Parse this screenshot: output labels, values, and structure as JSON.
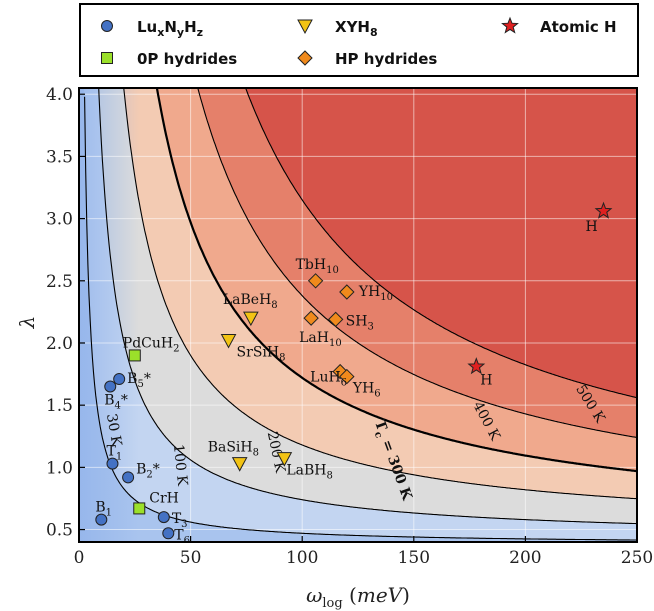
{
  "legend": {
    "items": [
      {
        "label": "LuxNyHz",
        "marker": "circle",
        "color": "#4472C4",
        "series": "LuNH"
      },
      {
        "label": "XYH8",
        "marker": "tri-down",
        "color": "#F2C314",
        "series": "XYH8"
      },
      {
        "label": "Atomic H",
        "marker": "star",
        "color": "#E02020",
        "series": "AtomicH"
      },
      {
        "label": "0P hydrides",
        "marker": "square",
        "color": "#9BE02A",
        "series": "0P"
      },
      {
        "label": "HP hydrides",
        "marker": "diamond",
        "color": "#F08A1C",
        "series": "HP"
      }
    ]
  },
  "chart_data": {
    "type": "scatter",
    "xlabel": "ωlog (meV)",
    "ylabel": "λ",
    "xlim": [
      0,
      250
    ],
    "ylim": [
      0.4,
      4.05
    ],
    "xticks": [
      0,
      50,
      100,
      150,
      200,
      250
    ],
    "yticks": [
      0.5,
      1.0,
      1.5,
      2.0,
      2.5,
      3.0,
      3.5,
      4.0
    ],
    "grid": true,
    "legend_position": "top",
    "contours": [
      {
        "label": "30 K",
        "Tc": 30
      },
      {
        "label": "100 K",
        "Tc": 100
      },
      {
        "label": "200 K",
        "Tc": 200
      },
      {
        "label": "Tc = 300 K",
        "Tc": 300,
        "bold": true
      },
      {
        "label": "400 K",
        "Tc": 400
      },
      {
        "label": "500 K",
        "Tc": 500
      }
    ],
    "series": [
      {
        "name": "LuxNyHz",
        "marker": "circle",
        "color": "#4472C4",
        "points": [
          {
            "x": 14,
            "y": 1.65,
            "label": "B4*"
          },
          {
            "x": 18,
            "y": 1.71,
            "label": "B5*"
          },
          {
            "x": 15,
            "y": 1.03,
            "label": "T1"
          },
          {
            "x": 22,
            "y": 0.92,
            "label": "B2*"
          },
          {
            "x": 10,
            "y": 0.58,
            "label": "B1"
          },
          {
            "x": 38,
            "y": 0.6,
            "label": "T3"
          },
          {
            "x": 40,
            "y": 0.47,
            "label": "T6"
          }
        ]
      },
      {
        "name": "0P hydrides",
        "marker": "square",
        "color": "#9BE02A",
        "points": [
          {
            "x": 25,
            "y": 1.9,
            "label": "PdCuH2"
          },
          {
            "x": 27,
            "y": 0.67,
            "label": "CrH"
          }
        ]
      },
      {
        "name": "XYH8",
        "marker": "tri-down",
        "color": "#F2C314",
        "points": [
          {
            "x": 77,
            "y": 2.2,
            "label": "LaBeH8"
          },
          {
            "x": 67,
            "y": 2.02,
            "label": "SrSiH8"
          },
          {
            "x": 72,
            "y": 1.03,
            "label": "BaSiH8"
          },
          {
            "x": 92,
            "y": 1.07,
            "label": "LaBH8"
          }
        ]
      },
      {
        "name": "HP hydrides",
        "marker": "diamond",
        "color": "#F08A1C",
        "points": [
          {
            "x": 106,
            "y": 2.5,
            "label": "TbH10"
          },
          {
            "x": 120,
            "y": 2.41,
            "label": "YH10"
          },
          {
            "x": 104,
            "y": 2.2,
            "label": "LaH10"
          },
          {
            "x": 115,
            "y": 2.19,
            "label": "SH3"
          },
          {
            "x": 117,
            "y": 1.77,
            "label": "LuH6"
          },
          {
            "x": 120,
            "y": 1.73,
            "label": "YH6"
          }
        ]
      },
      {
        "name": "Atomic H",
        "marker": "star",
        "color": "#E02020",
        "points": [
          {
            "x": 178,
            "y": 1.81,
            "label": "H"
          },
          {
            "x": 235,
            "y": 3.06,
            "label": "H"
          }
        ]
      }
    ]
  }
}
